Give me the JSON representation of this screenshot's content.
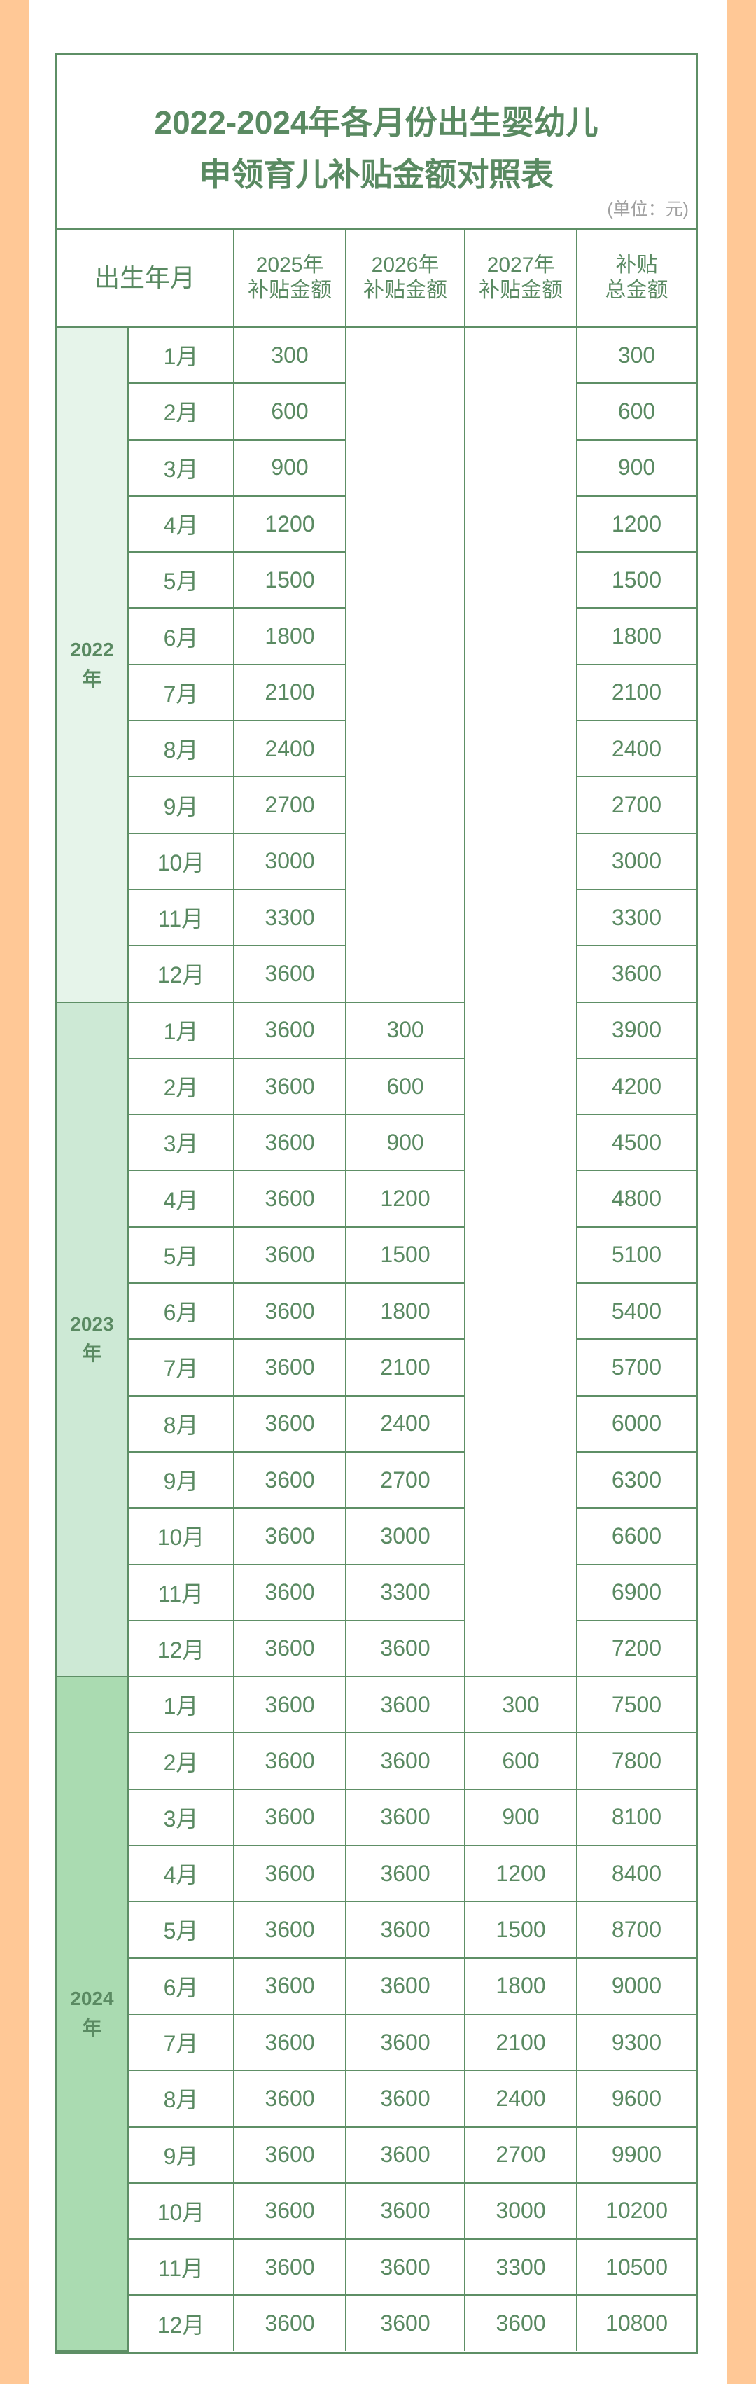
{
  "title": {
    "line1": "2022-2024年各月份出生婴幼儿",
    "line2": "申领育儿补贴金额对照表",
    "unit": "(单位：元)"
  },
  "colors": {
    "background": "#ffc896",
    "border": "#5e8f66",
    "text": "#5a8a62",
    "year_2022": "#e6f4ea",
    "year_2023": "#cde9d5",
    "year_2024": "#aadbb1"
  },
  "headers": {
    "birth": "出生年月",
    "c2025": [
      "2025年",
      "补贴金额"
    ],
    "c2026": [
      "2026年",
      "补贴金额"
    ],
    "c2027": [
      "2027年",
      "补贴金额"
    ],
    "total": [
      "补贴",
      "总金额"
    ]
  },
  "groups": [
    {
      "year": [
        "2022",
        "年"
      ],
      "rows": [
        {
          "month": "1月",
          "y2025": "300",
          "total": "300"
        },
        {
          "month": "2月",
          "y2025": "600",
          "total": "600"
        },
        {
          "month": "3月",
          "y2025": "900",
          "total": "900"
        },
        {
          "month": "4月",
          "y2025": "1200",
          "total": "1200"
        },
        {
          "month": "5月",
          "y2025": "1500",
          "total": "1500"
        },
        {
          "month": "6月",
          "y2025": "1800",
          "total": "1800"
        },
        {
          "month": "7月",
          "y2025": "2100",
          "total": "2100"
        },
        {
          "month": "8月",
          "y2025": "2400",
          "total": "2400"
        },
        {
          "month": "9月",
          "y2025": "2700",
          "total": "2700"
        },
        {
          "month": "10月",
          "y2025": "3000",
          "total": "3000"
        },
        {
          "month": "11月",
          "y2025": "3300",
          "total": "3300"
        },
        {
          "month": "12月",
          "y2025": "3600",
          "total": "3600"
        }
      ]
    },
    {
      "year": [
        "2023",
        "年"
      ],
      "rows": [
        {
          "month": "1月",
          "y2025": "3600",
          "y2026": "300",
          "total": "3900"
        },
        {
          "month": "2月",
          "y2025": "3600",
          "y2026": "600",
          "total": "4200"
        },
        {
          "month": "3月",
          "y2025": "3600",
          "y2026": "900",
          "total": "4500"
        },
        {
          "month": "4月",
          "y2025": "3600",
          "y2026": "1200",
          "total": "4800"
        },
        {
          "month": "5月",
          "y2025": "3600",
          "y2026": "1500",
          "total": "5100"
        },
        {
          "month": "6月",
          "y2025": "3600",
          "y2026": "1800",
          "total": "5400"
        },
        {
          "month": "7月",
          "y2025": "3600",
          "y2026": "2100",
          "total": "5700"
        },
        {
          "month": "8月",
          "y2025": "3600",
          "y2026": "2400",
          "total": "6000"
        },
        {
          "month": "9月",
          "y2025": "3600",
          "y2026": "2700",
          "total": "6300"
        },
        {
          "month": "10月",
          "y2025": "3600",
          "y2026": "3000",
          "total": "6600"
        },
        {
          "month": "11月",
          "y2025": "3600",
          "y2026": "3300",
          "total": "6900"
        },
        {
          "month": "12月",
          "y2025": "3600",
          "y2026": "3600",
          "total": "7200"
        }
      ]
    },
    {
      "year": [
        "2024",
        "年"
      ],
      "rows": [
        {
          "month": "1月",
          "y2025": "3600",
          "y2026": "3600",
          "y2027": "300",
          "total": "7500"
        },
        {
          "month": "2月",
          "y2025": "3600",
          "y2026": "3600",
          "y2027": "600",
          "total": "7800"
        },
        {
          "month": "3月",
          "y2025": "3600",
          "y2026": "3600",
          "y2027": "900",
          "total": "8100"
        },
        {
          "month": "4月",
          "y2025": "3600",
          "y2026": "3600",
          "y2027": "1200",
          "total": "8400"
        },
        {
          "month": "5月",
          "y2025": "3600",
          "y2026": "3600",
          "y2027": "1500",
          "total": "8700"
        },
        {
          "month": "6月",
          "y2025": "3600",
          "y2026": "3600",
          "y2027": "1800",
          "total": "9000"
        },
        {
          "month": "7月",
          "y2025": "3600",
          "y2026": "3600",
          "y2027": "2100",
          "total": "9300"
        },
        {
          "month": "8月",
          "y2025": "3600",
          "y2026": "3600",
          "y2027": "2400",
          "total": "9600"
        },
        {
          "month": "9月",
          "y2025": "3600",
          "y2026": "3600",
          "y2027": "2700",
          "total": "9900"
        },
        {
          "month": "10月",
          "y2025": "3600",
          "y2026": "3600",
          "y2027": "3000",
          "total": "10200"
        },
        {
          "month": "11月",
          "y2025": "3600",
          "y2026": "3600",
          "y2027": "3300",
          "total": "10500"
        },
        {
          "month": "12月",
          "y2025": "3600",
          "y2026": "3600",
          "y2027": "3600",
          "total": "10800"
        }
      ]
    }
  ]
}
